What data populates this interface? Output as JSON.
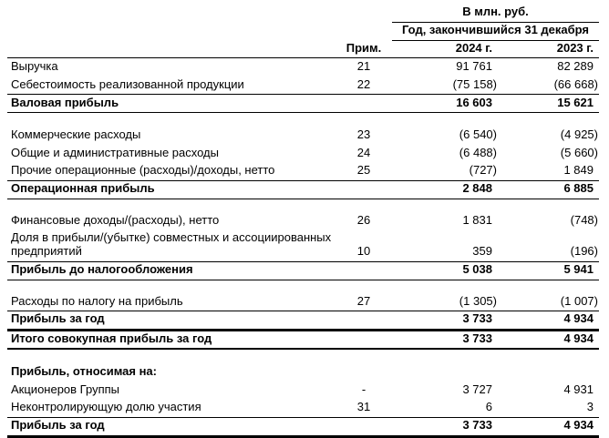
{
  "colors": {
    "text": "#000000",
    "background": "#ffffff",
    "rule": "#000000"
  },
  "table": {
    "unit_header": "В млн. руб.",
    "period_header": "Год, закончившийся 31 декабря",
    "columns": {
      "note": "Прим.",
      "y2024": "2024 г.",
      "y2023": "2023 г."
    },
    "rows": [
      {
        "label": "Выручка",
        "note": "21",
        "y2024": "91 761",
        "y2023": "82 289"
      },
      {
        "label": "Себестоимость реализованной продукции",
        "note": "22",
        "y2024": "(75 158)",
        "y2023": "(66 668)",
        "border": 1
      },
      {
        "label": "Валовая прибыль",
        "y2024": "16 603",
        "y2023": "15 621",
        "bold": true,
        "border": 1
      },
      {
        "type": "spacer"
      },
      {
        "label": "Коммерческие расходы",
        "note": "23",
        "y2024": "(6 540)",
        "y2023": "(4 925)"
      },
      {
        "label": "Общие и административные расходы",
        "note": "24",
        "y2024": "(6 488)",
        "y2023": "(5 660)"
      },
      {
        "label": "Прочие операционные (расходы)/доходы, нетто",
        "note": "25",
        "y2024": "(727)",
        "y2023": "1 849",
        "border": 1
      },
      {
        "label": "Операционная прибыль",
        "y2024": "2 848",
        "y2023": "6 885",
        "bold": true,
        "border": 1
      },
      {
        "type": "spacer"
      },
      {
        "label": "Финансовые доходы/(расходы), нетто",
        "note": "26",
        "y2024": "1 831",
        "y2023": "(748)"
      },
      {
        "label": "Доля в прибыли/(убытке) совместных и ассоциированных предприятий",
        "note": "10",
        "y2024": "359",
        "y2023": "(196)",
        "border": 1
      },
      {
        "label": "Прибыль до налогообложения",
        "y2024": "5 038",
        "y2023": "5 941",
        "bold": true,
        "border": 1
      },
      {
        "type": "spacer"
      },
      {
        "label": "Расходы по налогу на прибыль",
        "note": "27",
        "y2024": "(1 305)",
        "y2023": "(1 007)",
        "border": 1
      },
      {
        "label": "Прибыль за год",
        "y2024": "3 733",
        "y2023": "4 934",
        "bold": true,
        "border": 3
      },
      {
        "label": "Итого совокупная прибыль за год",
        "y2024": "3 733",
        "y2023": "4 934",
        "bold": true,
        "border": 2
      },
      {
        "type": "spacer"
      },
      {
        "label": "Прибыль, относимая на:",
        "bold": true
      },
      {
        "label": "Акционеров Группы",
        "note": "-",
        "y2024": "3 727",
        "y2023": "4 931"
      },
      {
        "label": "Неконтролирующую долю участия",
        "note": "31",
        "y2024": "6",
        "y2023": "3",
        "border": 1
      },
      {
        "label": "Прибыль за год",
        "y2024": "3 733",
        "y2023": "4 934",
        "bold": true,
        "border": 3
      }
    ]
  }
}
